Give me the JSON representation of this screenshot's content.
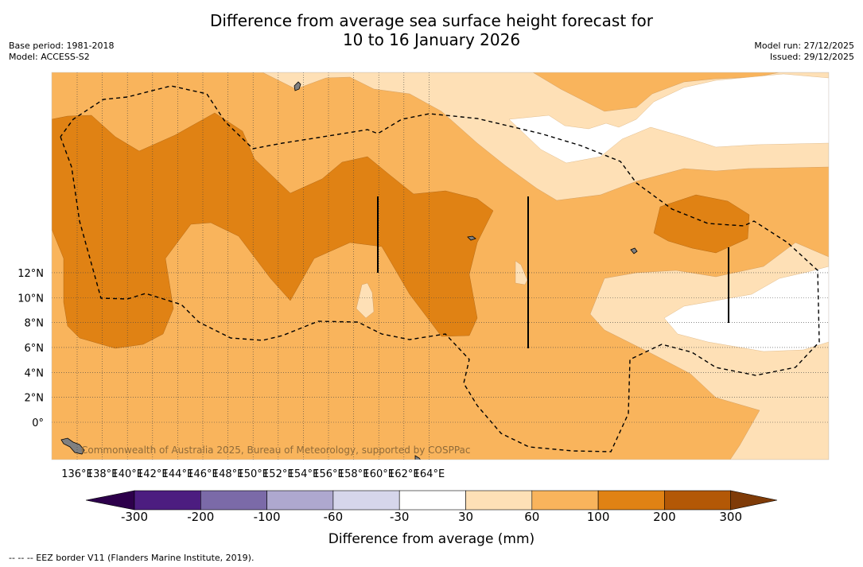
{
  "header": {
    "title_line1": "Difference from average sea surface height forecast for",
    "title_line2": "10 to 16 January 2026",
    "base_period": "Base period: 1981-2018",
    "model": "Model: ACCESS-S2",
    "model_run": "Model run: 27/12/2025",
    "issued": "Issued: 29/12/2025"
  },
  "map": {
    "attribution": "Commonwealth of Australia 2025, Bureau of Meteorology, supported by COSPPac",
    "lon_labels": [
      "136°E",
      "138°E",
      "140°E",
      "142°E",
      "144°E",
      "146°E",
      "148°E",
      "150°E",
      "152°E",
      "154°E",
      "156°E",
      "158°E",
      "160°E",
      "162°E",
      "164°E"
    ],
    "lat_labels": [
      "12°N",
      "10°N",
      "8°N",
      "6°N",
      "4°N",
      "2°N",
      "0°"
    ]
  },
  "colorbar": {
    "title": "Difference from average (mm)",
    "tick_labels": [
      "-300",
      "-200",
      "-100",
      "-60",
      "-30",
      "30",
      "60",
      "100",
      "200",
      "300"
    ],
    "colors": [
      "#4c1d80",
      "#7b6aa8",
      "#aea8cf",
      "#d6d6eb",
      "#ffffff",
      "#fee0b6",
      "#f9b45c",
      "#e08214",
      "#b35806"
    ],
    "extend_low_color": "#2d004b",
    "extend_high_color": "#7f3b08"
  },
  "footnote": "--  --  -- EEZ border V11 (Flanders Marine Institute, 2019)."
}
